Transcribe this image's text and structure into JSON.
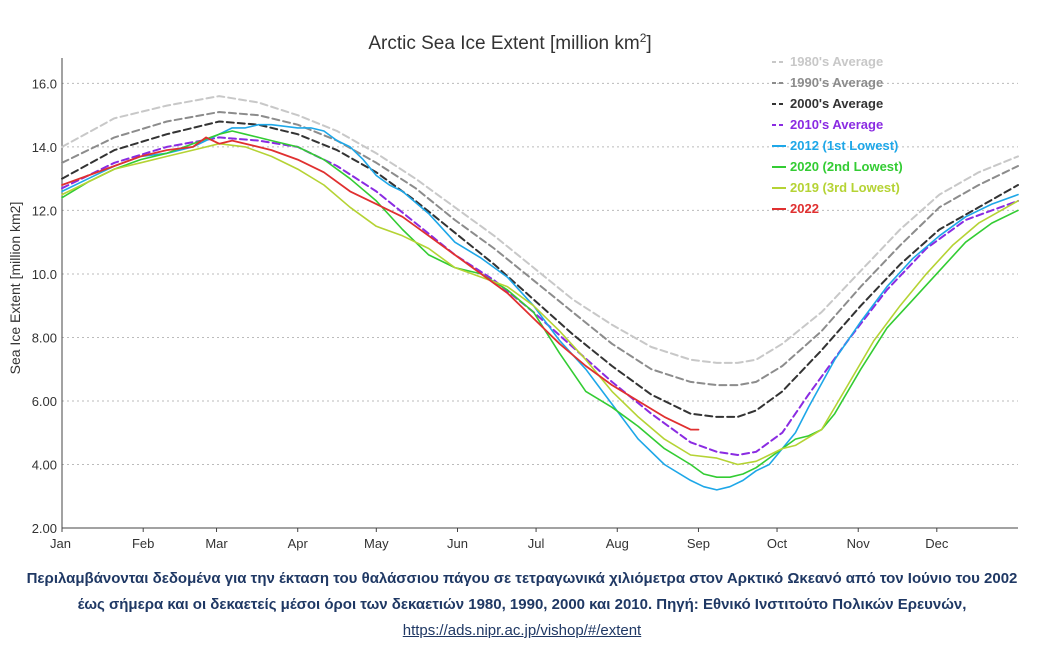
{
  "chart_data": {
    "type": "line",
    "title": "Arctic Sea Ice Extent [million km",
    "title_sup": "2",
    "title_end": "]",
    "ylabel": "Sea Ice Extent [million km2]",
    "xlabel": "",
    "ylim": [
      2.0,
      16.8
    ],
    "xlim": [
      0,
      365
    ],
    "grid": true,
    "legend_position": "top-right",
    "y_ticks": [
      "2.00",
      "4.00",
      "6.00",
      "8.00",
      "10.0",
      "12.0",
      "14.0",
      "16.0"
    ],
    "y_tick_values": [
      2,
      4,
      6,
      8,
      10,
      12,
      14,
      16
    ],
    "x_ticks": [
      "Jan",
      "Feb",
      "Mar",
      "Apr",
      "May",
      "Jun",
      "Jul",
      "Aug",
      "Sep",
      "Oct",
      "Nov",
      "Dec"
    ],
    "x_tick_days": [
      0,
      31,
      59,
      90,
      120,
      151,
      181,
      212,
      243,
      273,
      304,
      334
    ],
    "series": [
      {
        "name": "1980's Average",
        "color": "#c8c8c8",
        "dash": true,
        "width": 2,
        "x": [
          0,
          20,
          40,
          60,
          75,
          90,
          105,
          120,
          135,
          150,
          165,
          180,
          195,
          210,
          225,
          240,
          250,
          258,
          265,
          275,
          290,
          305,
          320,
          335,
          350,
          365
        ],
        "y": [
          14.0,
          14.9,
          15.3,
          15.6,
          15.4,
          15.0,
          14.5,
          13.8,
          13.0,
          12.1,
          11.2,
          10.2,
          9.2,
          8.4,
          7.7,
          7.3,
          7.2,
          7.2,
          7.3,
          7.8,
          8.8,
          10.1,
          11.4,
          12.5,
          13.2,
          13.7
        ]
      },
      {
        "name": "1990's Average",
        "color": "#8c8c8c",
        "dash": true,
        "width": 2,
        "x": [
          0,
          20,
          40,
          60,
          75,
          90,
          105,
          120,
          135,
          150,
          165,
          180,
          195,
          210,
          225,
          240,
          250,
          258,
          265,
          275,
          290,
          305,
          320,
          335,
          350,
          365
        ],
        "y": [
          13.5,
          14.3,
          14.8,
          15.1,
          15.0,
          14.7,
          14.2,
          13.5,
          12.7,
          11.7,
          10.8,
          9.8,
          8.8,
          7.8,
          7.0,
          6.6,
          6.5,
          6.5,
          6.6,
          7.1,
          8.2,
          9.6,
          10.9,
          12.1,
          12.8,
          13.4
        ]
      },
      {
        "name": "2000's Average",
        "color": "#333333",
        "dash": true,
        "width": 2,
        "x": [
          0,
          20,
          40,
          60,
          75,
          90,
          105,
          120,
          135,
          150,
          165,
          180,
          195,
          210,
          225,
          240,
          250,
          258,
          265,
          275,
          290,
          305,
          320,
          335,
          350,
          365
        ],
        "y": [
          13.0,
          13.9,
          14.4,
          14.8,
          14.7,
          14.4,
          13.9,
          13.2,
          12.3,
          11.3,
          10.3,
          9.2,
          8.1,
          7.1,
          6.2,
          5.6,
          5.5,
          5.5,
          5.7,
          6.3,
          7.6,
          9.0,
          10.3,
          11.4,
          12.1,
          12.8
        ]
      },
      {
        "name": "2010's Average",
        "color": "#8a2be2",
        "dash": true,
        "width": 2,
        "x": [
          0,
          20,
          40,
          60,
          75,
          90,
          105,
          120,
          135,
          150,
          165,
          180,
          195,
          210,
          225,
          240,
          250,
          258,
          265,
          275,
          285,
          300,
          315,
          330,
          345,
          365
        ],
        "y": [
          12.7,
          13.5,
          14.0,
          14.3,
          14.2,
          14.0,
          13.4,
          12.6,
          11.6,
          10.6,
          9.8,
          8.8,
          7.7,
          6.6,
          5.6,
          4.7,
          4.4,
          4.3,
          4.4,
          5.0,
          6.2,
          7.9,
          9.5,
          10.8,
          11.7,
          12.3
        ]
      },
      {
        "name": "2012 (1st Lowest)",
        "color": "#1ea7e8",
        "dash": false,
        "width": 1.6,
        "x": [
          0,
          10,
          20,
          30,
          40,
          50,
          60,
          65,
          70,
          75,
          80,
          90,
          95,
          100,
          105,
          110,
          115,
          120,
          125,
          130,
          140,
          150,
          160,
          170,
          180,
          190,
          200,
          210,
          220,
          230,
          240,
          245,
          250,
          255,
          260,
          265,
          270,
          275,
          280,
          285,
          295,
          305,
          315,
          325,
          335,
          345,
          355,
          365
        ],
        "y": [
          12.6,
          13.0,
          13.4,
          13.7,
          13.8,
          14.0,
          14.4,
          14.6,
          14.6,
          14.7,
          14.7,
          14.6,
          14.6,
          14.5,
          14.2,
          14.0,
          13.6,
          13.1,
          12.8,
          12.6,
          11.9,
          11.0,
          10.5,
          9.9,
          9.0,
          7.9,
          7.0,
          5.9,
          4.8,
          4.0,
          3.5,
          3.3,
          3.2,
          3.3,
          3.5,
          3.8,
          4.0,
          4.5,
          5.0,
          5.8,
          7.3,
          8.5,
          9.6,
          10.5,
          11.2,
          11.8,
          12.2,
          12.5
        ]
      },
      {
        "name": "2020 (2nd Lowest)",
        "color": "#33cc33",
        "dash": false,
        "width": 1.6,
        "x": [
          0,
          10,
          20,
          30,
          40,
          50,
          60,
          65,
          70,
          75,
          80,
          90,
          100,
          110,
          120,
          130,
          140,
          150,
          160,
          170,
          180,
          190,
          200,
          210,
          220,
          230,
          240,
          245,
          250,
          255,
          260,
          265,
          270,
          275,
          280,
          285,
          290,
          295,
          305,
          315,
          325,
          335,
          345,
          355,
          365
        ],
        "y": [
          12.4,
          12.9,
          13.3,
          13.6,
          13.8,
          14.1,
          14.4,
          14.5,
          14.4,
          14.3,
          14.2,
          14.0,
          13.6,
          13.0,
          12.3,
          11.4,
          10.6,
          10.2,
          10.0,
          9.5,
          8.8,
          7.5,
          6.3,
          5.8,
          5.2,
          4.5,
          4.0,
          3.7,
          3.6,
          3.6,
          3.7,
          3.9,
          4.2,
          4.5,
          4.8,
          4.9,
          5.1,
          5.6,
          7.0,
          8.3,
          9.2,
          10.1,
          11.0,
          11.6,
          12.0
        ]
      },
      {
        "name": "2019 (3rd Lowest)",
        "color": "#b5d334",
        "dash": false,
        "width": 1.6,
        "x": [
          0,
          10,
          20,
          30,
          40,
          50,
          60,
          70,
          80,
          90,
          100,
          110,
          120,
          130,
          140,
          150,
          160,
          170,
          180,
          190,
          200,
          210,
          220,
          230,
          240,
          250,
          258,
          265,
          270,
          275,
          280,
          290,
          300,
          310,
          320,
          330,
          340,
          350,
          365
        ],
        "y": [
          12.5,
          12.9,
          13.3,
          13.5,
          13.7,
          13.9,
          14.1,
          14.0,
          13.7,
          13.3,
          12.8,
          12.1,
          11.5,
          11.2,
          10.8,
          10.2,
          9.9,
          9.6,
          9.0,
          8.2,
          7.3,
          6.3,
          5.5,
          4.8,
          4.3,
          4.2,
          4.0,
          4.1,
          4.3,
          4.5,
          4.6,
          5.1,
          6.5,
          7.9,
          9.0,
          10.0,
          10.9,
          11.6,
          12.3
        ]
      },
      {
        "name": "2022",
        "color": "#e03030",
        "dash": false,
        "width": 1.8,
        "x": [
          0,
          10,
          20,
          30,
          40,
          50,
          55,
          60,
          65,
          70,
          80,
          90,
          100,
          110,
          120,
          130,
          140,
          150,
          160,
          170,
          180,
          190,
          200,
          210,
          220,
          230,
          240,
          243
        ],
        "y": [
          12.8,
          13.1,
          13.4,
          13.7,
          13.9,
          14.0,
          14.3,
          14.1,
          14.2,
          14.1,
          13.9,
          13.6,
          13.2,
          12.6,
          12.2,
          11.8,
          11.2,
          10.6,
          10.0,
          9.4,
          8.6,
          7.8,
          7.1,
          6.5,
          6.0,
          5.5,
          5.1,
          5.1
        ]
      }
    ]
  },
  "caption": {
    "text": "Περιλαμβάνονται δεδομένα για την έκταση του θαλάσσιου πάγου σε τετραγωνικά χιλιόμετρα στον Αρκτικό Ωκεανό από τον Ιούνιο του 2002 έως σήμερα και οι δεκαετείς μέσοι όροι των δεκαετιών 1980, 1990, 2000 και 2010. Πηγή: Εθνικό Ινστιτούτο Πολικών Ερευνών, ",
    "link_text": "https://ads.nipr.ac.jp/vishop/#/extent"
  }
}
